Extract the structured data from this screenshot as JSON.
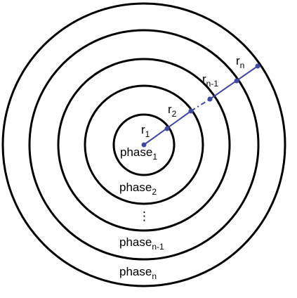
{
  "colors": {
    "accent": "#3f49a3",
    "ring": "#000000",
    "background": "#ffffff"
  },
  "radius_labels": [
    {
      "base": "r",
      "sub": "1"
    },
    {
      "base": "r",
      "sub": "2"
    },
    {
      "base": "r",
      "sub": "n-1"
    },
    {
      "base": "r",
      "sub": "n"
    }
  ],
  "phase_labels": [
    {
      "base": "phase",
      "sub": "1"
    },
    {
      "base": "phase",
      "sub": "2"
    },
    {
      "base": "phase",
      "sub": "n-1"
    },
    {
      "base": "phase",
      "sub": "n"
    }
  ],
  "ellipsis": "⋮"
}
